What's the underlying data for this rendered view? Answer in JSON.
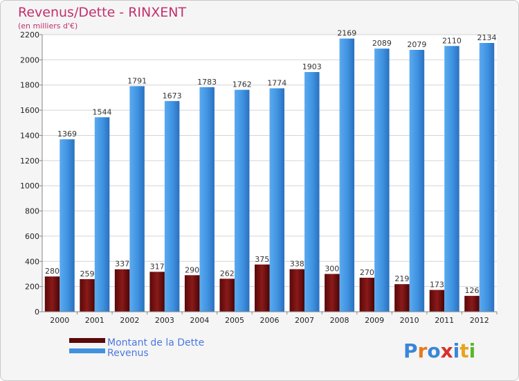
{
  "chart_data": {
    "type": "bar",
    "title": "Revenus/Dette - RINXENT",
    "subtitle": "(en milliers d'€)",
    "categories": [
      "2000",
      "2001",
      "2002",
      "2003",
      "2004",
      "2005",
      "2006",
      "2007",
      "2008",
      "2009",
      "2010",
      "2011",
      "2012"
    ],
    "series": [
      {
        "name": "Montant de la Dette",
        "color": "#7a1010",
        "values": [
          280,
          259,
          337,
          317,
          290,
          262,
          375,
          338,
          300,
          270,
          219,
          173,
          126
        ]
      },
      {
        "name": "Revenus",
        "color": "#3f92e0",
        "values": [
          1369,
          1544,
          1791,
          1673,
          1783,
          1762,
          1774,
          1903,
          2169,
          2089,
          2079,
          2110,
          2134
        ]
      }
    ],
    "yticks": [
      0,
      200,
      400,
      600,
      800,
      1000,
      1200,
      1400,
      1600,
      1800,
      2000,
      2200
    ],
    "ylim": [
      0,
      2200
    ],
    "grid": true,
    "legend_position": "bottom-left"
  },
  "branding": {
    "logo_letters": [
      "P",
      "r",
      "o",
      "x",
      "i",
      "t",
      "i"
    ],
    "logo_colors": [
      "#3a86d8",
      "#e87a1a",
      "#3a86d8",
      "#d8302a",
      "#3a86d8",
      "#e8a51a",
      "#5ab82a"
    ]
  }
}
